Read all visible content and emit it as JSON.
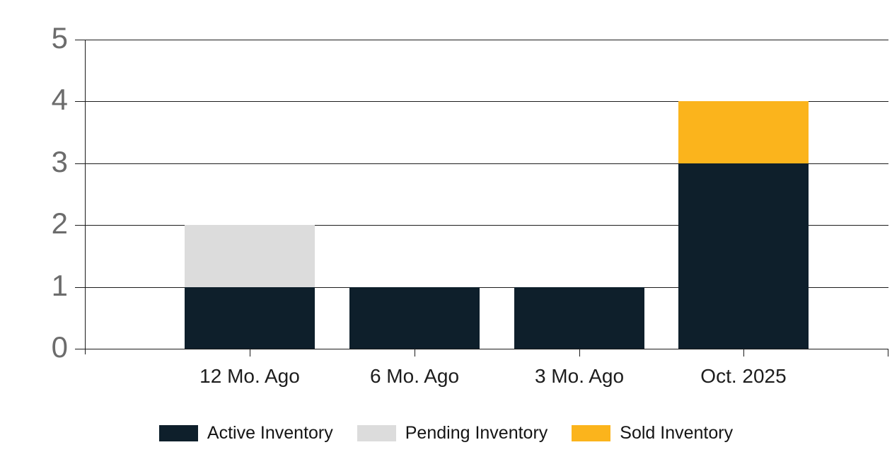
{
  "chart_data": {
    "type": "bar",
    "subtype": "stacked-vertical",
    "title": "",
    "xlabel": "",
    "ylabel": "",
    "categories": [
      "12 Mo. Ago",
      "6 Mo. Ago",
      "3 Mo. Ago",
      "Oct. 2025"
    ],
    "series": [
      {
        "name": "Active Inventory",
        "color": "#0e1f2b",
        "values": [
          1,
          1,
          1,
          3
        ]
      },
      {
        "name": "Pending Inventory",
        "color": "#dcdcdc",
        "values": [
          1,
          0,
          0,
          0
        ]
      },
      {
        "name": "Sold Inventory",
        "color": "#fbb41c",
        "values": [
          0,
          0,
          0,
          1
        ]
      }
    ],
    "stack_totals": [
      2,
      1,
      1,
      4
    ],
    "ylim": [
      0,
      5
    ],
    "yticks": [
      0,
      1,
      2,
      3,
      4,
      5
    ],
    "grid": true,
    "legend_position": "bottom",
    "colors": {
      "gridline": "#1c1c1c",
      "axis": "#1c1c1c",
      "y_tick_label": "#6c6c6c",
      "x_tick_label": "#1d1d1d",
      "legend_text": "#141414",
      "background": "#ffffff"
    }
  }
}
